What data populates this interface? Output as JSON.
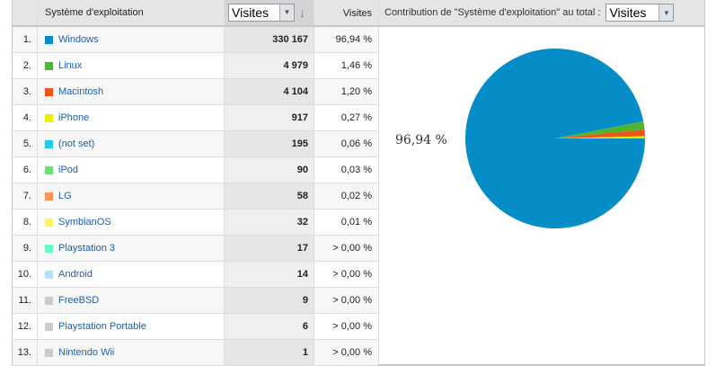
{
  "table": {
    "header": {
      "dimension": "Système d'exploitation",
      "metric_select": "Visites",
      "metric_col": "Visites"
    },
    "rows": [
      {
        "rank": "1.",
        "name": "Windows",
        "visits": "330 167",
        "pct": "96,94 %",
        "color": "#058dc7"
      },
      {
        "rank": "2.",
        "name": "Linux",
        "visits": "4 979",
        "pct": "1,46 %",
        "color": "#50b432"
      },
      {
        "rank": "3.",
        "name": "Macintosh",
        "visits": "4 104",
        "pct": "1,20 %",
        "color": "#ed561b"
      },
      {
        "rank": "4.",
        "name": "iPhone",
        "visits": "917",
        "pct": "0,27 %",
        "color": "#edef00"
      },
      {
        "rank": "5.",
        "name": "(not set)",
        "visits": "195",
        "pct": "0,06 %",
        "color": "#24cbe5"
      },
      {
        "rank": "6.",
        "name": "iPod",
        "visits": "90",
        "pct": "0,03 %",
        "color": "#64e572"
      },
      {
        "rank": "7.",
        "name": "LG",
        "visits": "58",
        "pct": "0,02 %",
        "color": "#ff9655"
      },
      {
        "rank": "8.",
        "name": "SymbianOS",
        "visits": "32",
        "pct": "0,01 %",
        "color": "#fff263"
      },
      {
        "rank": "9.",
        "name": "Playstation 3",
        "visits": "17",
        "pct": "> 0,00 %",
        "color": "#6af9c4"
      },
      {
        "rank": "10.",
        "name": "Android",
        "visits": "14",
        "pct": "> 0,00 %",
        "color": "#b2deff"
      },
      {
        "rank": "11.",
        "name": "FreeBSD",
        "visits": "9",
        "pct": "> 0,00 %",
        "color": "#cccccc"
      },
      {
        "rank": "12.",
        "name": "Playstation Portable",
        "visits": "6",
        "pct": "> 0,00 %",
        "color": "#cccccc"
      },
      {
        "rank": "13.",
        "name": "Nintendo Wii",
        "visits": "1",
        "pct": "> 0,00 %",
        "color": "#cccccc"
      }
    ]
  },
  "chart": {
    "label": "Contribution de \"Système d'exploitation\" au total :",
    "select": "Visites",
    "slice_label": "96,94  %"
  },
  "chart_data": {
    "type": "pie",
    "categories": [
      "Windows",
      "Linux",
      "Macintosh",
      "iPhone",
      "(not set)",
      "iPod",
      "LG",
      "SymbianOS",
      "Playstation 3",
      "Android",
      "FreeBSD",
      "Playstation Portable",
      "Nintendo Wii"
    ],
    "values": [
      330167,
      4979,
      4104,
      917,
      195,
      90,
      58,
      32,
      17,
      14,
      9,
      6,
      1
    ]
  }
}
